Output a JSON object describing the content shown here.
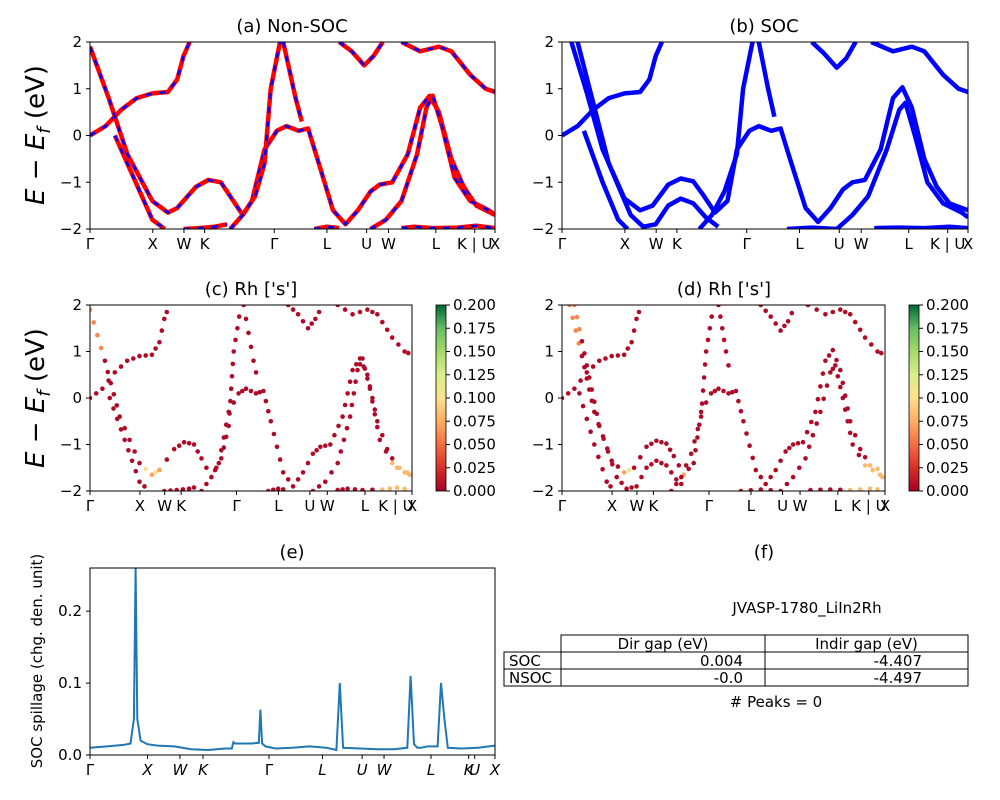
{
  "chart_data": [
    {
      "panel": "a",
      "type": "line",
      "title": "(a) Non-SOC",
      "ylabel": "E − E_f (eV)",
      "ylim": [
        -2,
        2
      ],
      "yticks": [
        "2",
        "1",
        "0",
        "−1",
        "−2"
      ],
      "xticks": [
        "Γ",
        "X",
        "W",
        "K",
        "Γ",
        "L",
        "U",
        "W",
        "L",
        "K | U",
        "X"
      ],
      "colors": {
        "solid": "#ff0000",
        "dashed": "#0000ff"
      },
      "series": [
        {
          "points": [
            [
              0,
              0.0
            ],
            [
              0.05,
              0.2
            ],
            [
              0.1,
              0.55
            ],
            [
              0.15,
              0.8
            ],
            [
              0.2,
              0.9
            ],
            [
              0.25,
              0.93
            ],
            [
              0.28,
              1.2
            ],
            [
              0.3,
              1.7
            ],
            [
              0.32,
              2.0
            ]
          ]
        },
        {
          "points": [
            [
              0,
              1.9
            ],
            [
              0.06,
              0.8
            ],
            [
              0.12,
              -0.4
            ],
            [
              0.2,
              -1.4
            ],
            [
              0.25,
              -1.65
            ],
            [
              0.28,
              -1.55
            ],
            [
              0.34,
              -1.1
            ],
            [
              0.38,
              -0.95
            ],
            [
              0.42,
              -1.0
            ],
            [
              0.45,
              -1.3
            ],
            [
              0.49,
              -1.7
            ],
            [
              0.52,
              -1.4
            ],
            [
              0.56,
              -0.3
            ],
            [
              0.6,
              0.1
            ],
            [
              0.63,
              0.2
            ],
            [
              0.67,
              0.1
            ],
            [
              0.7,
              0.15
            ],
            [
              0.73,
              -0.5
            ],
            [
              0.78,
              -1.6
            ],
            [
              0.82,
              -1.9
            ],
            [
              0.86,
              -1.6
            ],
            [
              0.9,
              -1.2
            ],
            [
              0.93,
              -1.05
            ],
            [
              0.97,
              -1.0
            ],
            [
              1.02,
              -0.4
            ],
            [
              1.06,
              0.6
            ],
            [
              1.09,
              0.85
            ],
            [
              1.12,
              0.5
            ],
            [
              1.16,
              -0.5
            ],
            [
              1.2,
              -1.1
            ],
            [
              1.24,
              -1.5
            ],
            [
              1.3,
              -1.7
            ]
          ]
        },
        {
          "points": [
            [
              0.08,
              0.0
            ],
            [
              0.14,
              -0.9
            ],
            [
              0.2,
              -1.8
            ],
            [
              0.24,
              -2.0
            ]
          ]
        },
        {
          "points": [
            [
              0.45,
              -2.0
            ],
            [
              0.49,
              -1.7
            ],
            [
              0.53,
              -1.3
            ],
            [
              0.56,
              -0.6
            ],
            [
              0.58,
              1.0
            ],
            [
              0.61,
              2.0
            ]
          ]
        },
        {
          "points": [
            [
              0.62,
              2.0
            ],
            [
              0.66,
              0.8
            ],
            [
              0.68,
              0.3
            ]
          ]
        },
        {
          "points": [
            [
              0.8,
              2.0
            ],
            [
              0.84,
              1.8
            ],
            [
              0.88,
              1.5
            ],
            [
              0.91,
              1.7
            ],
            [
              0.94,
              2.0
            ]
          ]
        },
        {
          "points": [
            [
              1.0,
              2.0
            ],
            [
              1.06,
              1.8
            ],
            [
              1.12,
              1.9
            ],
            [
              1.16,
              1.8
            ],
            [
              1.22,
              1.3
            ],
            [
              1.27,
              1.0
            ],
            [
              1.3,
              0.93
            ]
          ]
        },
        {
          "points": [
            [
              0.9,
              -2.0
            ],
            [
              0.95,
              -1.8
            ],
            [
              1.0,
              -1.4
            ],
            [
              1.05,
              -0.4
            ],
            [
              1.08,
              0.6
            ],
            [
              1.1,
              0.85
            ],
            [
              1.13,
              0.2
            ],
            [
              1.17,
              -0.9
            ],
            [
              1.22,
              -1.4
            ],
            [
              1.28,
              -1.6
            ],
            [
              1.3,
              -1.7
            ]
          ]
        },
        {
          "points": [
            [
              0.3,
              -2.0
            ],
            [
              0.35,
              -1.98
            ],
            [
              0.4,
              -1.95
            ],
            [
              0.44,
              -1.9
            ]
          ]
        },
        {
          "points": [
            [
              0.72,
              -2.0
            ],
            [
              0.76,
              -1.95
            ],
            [
              0.8,
              -1.98
            ]
          ]
        },
        {
          "points": [
            [
              1.0,
              -1.98
            ],
            [
              1.04,
              -1.95
            ],
            [
              1.1,
              -1.98
            ],
            [
              1.18,
              -1.97
            ],
            [
              1.24,
              -1.93
            ],
            [
              1.3,
              -1.98
            ]
          ]
        }
      ]
    },
    {
      "panel": "b",
      "type": "line",
      "title": "(b) SOC",
      "ylim": [
        -2,
        2
      ],
      "yticks": [
        "2",
        "1",
        "0",
        "−1",
        "−2"
      ],
      "xticks": [
        "Γ",
        "X",
        "W",
        "K",
        "Γ",
        "L",
        "U",
        "W",
        "L",
        "K | U",
        "X"
      ],
      "colors": {
        "solid": "#0000ff"
      },
      "series": [
        {
          "points": [
            [
              0,
              0.0
            ],
            [
              0.05,
              0.2
            ],
            [
              0.1,
              0.55
            ],
            [
              0.15,
              0.8
            ],
            [
              0.2,
              0.9
            ],
            [
              0.25,
              0.93
            ],
            [
              0.28,
              1.2
            ],
            [
              0.3,
              1.7
            ],
            [
              0.32,
              2.0
            ]
          ]
        },
        {
          "points": [
            [
              0.03,
              2.0
            ],
            [
              0.08,
              0.9
            ],
            [
              0.13,
              -0.3
            ],
            [
              0.2,
              -1.35
            ],
            [
              0.25,
              -1.6
            ],
            [
              0.29,
              -1.5
            ],
            [
              0.34,
              -1.05
            ],
            [
              0.38,
              -0.92
            ],
            [
              0.42,
              -0.98
            ],
            [
              0.45,
              -1.25
            ],
            [
              0.49,
              -1.65
            ],
            [
              0.53,
              -1.4
            ],
            [
              0.56,
              -0.3
            ],
            [
              0.6,
              0.1
            ],
            [
              0.63,
              0.2
            ],
            [
              0.67,
              0.1
            ],
            [
              0.7,
              0.15
            ],
            [
              0.73,
              -0.5
            ],
            [
              0.78,
              -1.55
            ],
            [
              0.82,
              -1.85
            ],
            [
              0.86,
              -1.55
            ],
            [
              0.9,
              -1.15
            ],
            [
              0.93,
              -1.0
            ],
            [
              0.97,
              -0.95
            ],
            [
              1.02,
              -0.3
            ],
            [
              1.06,
              0.8
            ],
            [
              1.09,
              1.03
            ],
            [
              1.12,
              0.6
            ],
            [
              1.16,
              -0.5
            ],
            [
              1.2,
              -1.1
            ],
            [
              1.24,
              -1.45
            ],
            [
              1.3,
              -1.6
            ]
          ]
        },
        {
          "points": [
            [
              0.05,
              2.0
            ],
            [
              0.1,
              0.7
            ],
            [
              0.15,
              -0.6
            ],
            [
              0.22,
              -1.7
            ],
            [
              0.26,
              -1.95
            ],
            [
              0.3,
              -1.9
            ],
            [
              0.34,
              -1.5
            ],
            [
              0.38,
              -1.35
            ],
            [
              0.42,
              -1.45
            ],
            [
              0.46,
              -1.75
            ],
            [
              0.5,
              -1.95
            ]
          ]
        },
        {
          "points": [
            [
              0.07,
              0.1
            ],
            [
              0.13,
              -1.0
            ],
            [
              0.18,
              -1.8
            ],
            [
              0.21,
              -2.0
            ]
          ]
        },
        {
          "points": [
            [
              0.44,
              -2.0
            ],
            [
              0.48,
              -1.7
            ],
            [
              0.52,
              -1.2
            ],
            [
              0.56,
              -0.4
            ],
            [
              0.58,
              1.0
            ],
            [
              0.61,
              2.0
            ]
          ]
        },
        {
          "points": [
            [
              0.63,
              2.0
            ],
            [
              0.66,
              1.0
            ],
            [
              0.68,
              0.4
            ]
          ]
        },
        {
          "points": [
            [
              0.8,
              2.0
            ],
            [
              0.84,
              1.75
            ],
            [
              0.88,
              1.45
            ],
            [
              0.91,
              1.65
            ],
            [
              0.94,
              2.0
            ]
          ]
        },
        {
          "points": [
            [
              0.99,
              2.0
            ],
            [
              1.06,
              1.8
            ],
            [
              1.12,
              1.9
            ],
            [
              1.16,
              1.8
            ],
            [
              1.22,
              1.3
            ],
            [
              1.27,
              1.0
            ],
            [
              1.3,
              0.93
            ]
          ]
        },
        {
          "points": [
            [
              0.88,
              -2.0
            ],
            [
              0.93,
              -1.7
            ],
            [
              0.98,
              -1.3
            ],
            [
              1.04,
              -0.3
            ],
            [
              1.08,
              0.55
            ],
            [
              1.1,
              0.7
            ],
            [
              1.13,
              0.0
            ],
            [
              1.17,
              -1.0
            ],
            [
              1.22,
              -1.45
            ],
            [
              1.28,
              -1.65
            ],
            [
              1.3,
              -1.75
            ]
          ]
        },
        {
          "points": [
            [
              0.72,
              -2.0
            ],
            [
              0.8,
              -1.97
            ],
            [
              0.88,
              -2.0
            ]
          ]
        },
        {
          "points": [
            [
              1.0,
              -1.98
            ],
            [
              1.08,
              -1.97
            ],
            [
              1.16,
              -1.98
            ],
            [
              1.24,
              -1.95
            ],
            [
              1.3,
              -1.98
            ]
          ]
        }
      ]
    },
    {
      "panel": "c",
      "type": "scatter",
      "title": "(c)  Rh ['s']",
      "ylabel": "E − E_f (eV)",
      "ylim": [
        -2,
        2
      ],
      "yticks": [
        "2",
        "1",
        "0",
        "−1",
        "−2"
      ],
      "xticks": [
        "Γ",
        "X",
        "W",
        "K",
        "Γ",
        "L",
        "U",
        "W",
        "L",
        "K | U",
        "X"
      ],
      "colorbar": {
        "ticks": [
          "0.200",
          "0.175",
          "0.150",
          "0.125",
          "0.100",
          "0.075",
          "0.050",
          "0.025",
          "0.000"
        ],
        "range": [
          0,
          0.2
        ]
      }
    },
    {
      "panel": "d",
      "type": "scatter",
      "title": "(d) Rh ['s']",
      "ylim": [
        -2,
        2
      ],
      "yticks": [
        "2",
        "1",
        "0",
        "−1",
        "−2"
      ],
      "xticks": [
        "Γ",
        "X",
        "W",
        "K",
        "Γ",
        "L",
        "U",
        "W",
        "L",
        "K | U",
        "X"
      ],
      "colorbar": {
        "ticks": [
          "0.200",
          "0.175",
          "0.150",
          "0.125",
          "0.100",
          "0.075",
          "0.050",
          "0.025",
          "0.000"
        ],
        "range": [
          0,
          0.2
        ]
      }
    },
    {
      "panel": "e",
      "type": "line",
      "title": "(e)",
      "ylabel": "SOC spillage (chg. den. unit)",
      "ylim": [
        0,
        0.26
      ],
      "yticks": [
        "0.2",
        "0.1",
        "0.0"
      ],
      "ytick_values": [
        0.2,
        0.1,
        0.0
      ],
      "xticks": [
        "Γ",
        "X",
        "W",
        "K",
        "Γ",
        "L",
        "U",
        "W",
        "L",
        "K",
        "U",
        "X"
      ],
      "color": "#1f77b4",
      "x": [
        0,
        0.05,
        0.1,
        0.12,
        0.13,
        0.135,
        0.14,
        0.15,
        0.17,
        0.2,
        0.25,
        0.3,
        0.35,
        0.4,
        0.42,
        0.425,
        0.43,
        0.45,
        0.48,
        0.5,
        0.505,
        0.51,
        0.52,
        0.55,
        0.6,
        0.65,
        0.7,
        0.72,
        0.73,
        0.74,
        0.75,
        0.8,
        0.85,
        0.9,
        0.94,
        0.95,
        0.96,
        0.97,
        0.98,
        1.0,
        1.03,
        1.04,
        1.05,
        1.06,
        1.1,
        1.15,
        1.2
      ],
      "y": [
        0.01,
        0.012,
        0.014,
        0.016,
        0.05,
        0.26,
        0.05,
        0.02,
        0.015,
        0.013,
        0.012,
        0.008,
        0.007,
        0.009,
        0.009,
        0.018,
        0.016,
        0.016,
        0.016,
        0.017,
        0.063,
        0.016,
        0.012,
        0.009,
        0.01,
        0.012,
        0.01,
        0.008,
        0.007,
        0.1,
        0.01,
        0.009,
        0.008,
        0.008,
        0.01,
        0.11,
        0.015,
        0.01,
        0.01,
        0.012,
        0.012,
        0.1,
        0.05,
        0.01,
        0.009,
        0.01,
        0.013
      ]
    },
    {
      "panel": "f",
      "type": "table",
      "title": "(f)",
      "subtitle": "JVASP-1780_LiIn2Rh",
      "columns": [
        "Dir gap (eV)",
        "Indir gap (eV)"
      ],
      "rows": [
        {
          "label": "SOC",
          "values": [
            "0.004",
            "-4.407"
          ]
        },
        {
          "label": "NSOC",
          "values": [
            "-0.0",
            "-4.497"
          ]
        }
      ],
      "footer": "# Peaks = 0"
    }
  ]
}
